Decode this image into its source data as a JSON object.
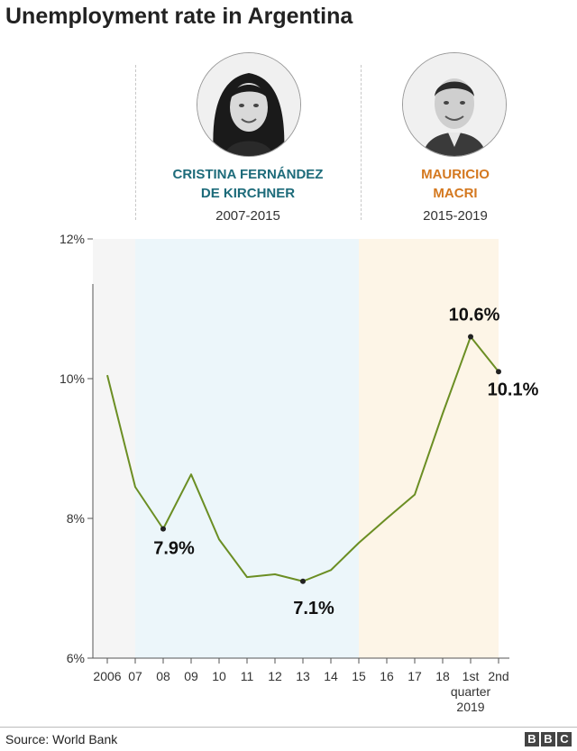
{
  "title": "Unemployment rate in Argentina",
  "presidents": [
    {
      "name": "CRISTINA FERNÁNDEZ DE KIRCHNER",
      "name_line1": "CRISTINA FERNÁNDEZ",
      "name_line2": "DE KIRCHNER",
      "years": "2007-2015",
      "color": "#1d6b7a",
      "band_color": "#ecf6fa"
    },
    {
      "name": "MAURICIO MACRI",
      "name_line1": "MAURICIO",
      "name_line2": "MACRI",
      "years": "2015-2019",
      "color": "#d4781f",
      "band_color": "#fdf5e7"
    }
  ],
  "source": "Source: World Bank",
  "brand": [
    "B",
    "B",
    "C"
  ],
  "chart_data": {
    "type": "line",
    "title": "Unemployment rate in Argentina",
    "xlabel": "",
    "ylabel": "",
    "ylim": [
      6,
      12
    ],
    "yticks": [
      "6%",
      "8%",
      "10%",
      "12%"
    ],
    "categories": [
      "2006",
      "07",
      "08",
      "09",
      "10",
      "11",
      "12",
      "13",
      "14",
      "15",
      "16",
      "17",
      "18",
      "1st quarter 2019",
      "2nd"
    ],
    "category_lines": [
      [
        "2006"
      ],
      [
        "07"
      ],
      [
        "08"
      ],
      [
        "09"
      ],
      [
        "10"
      ],
      [
        "11"
      ],
      [
        "12"
      ],
      [
        "13"
      ],
      [
        "14"
      ],
      [
        "15"
      ],
      [
        "16"
      ],
      [
        "17"
      ],
      [
        "18"
      ],
      [
        "1st",
        "quarter",
        "2019"
      ],
      [
        "2nd"
      ]
    ],
    "series": [
      {
        "values": [
          10.05,
          8.45,
          7.85,
          8.63,
          7.7,
          7.16,
          7.2,
          7.1,
          7.26,
          7.65,
          8.0,
          8.34,
          9.5,
          10.6,
          10.1
        ],
        "color": "#6b8e23"
      }
    ],
    "marked_points": [
      {
        "index": 2,
        "label": "7.9%"
      },
      {
        "index": 7,
        "label": "7.1%"
      },
      {
        "index": 13,
        "label": "10.6%"
      },
      {
        "index": 14,
        "label": "10.1%"
      }
    ],
    "periods": [
      {
        "from": "2006",
        "to": "07",
        "color": "#f5f5f5"
      },
      {
        "from": "07",
        "to": "15",
        "color": "#ecf6fa"
      },
      {
        "from": "15",
        "to": "2nd",
        "color": "#fdf5e7"
      }
    ],
    "grid": false
  }
}
